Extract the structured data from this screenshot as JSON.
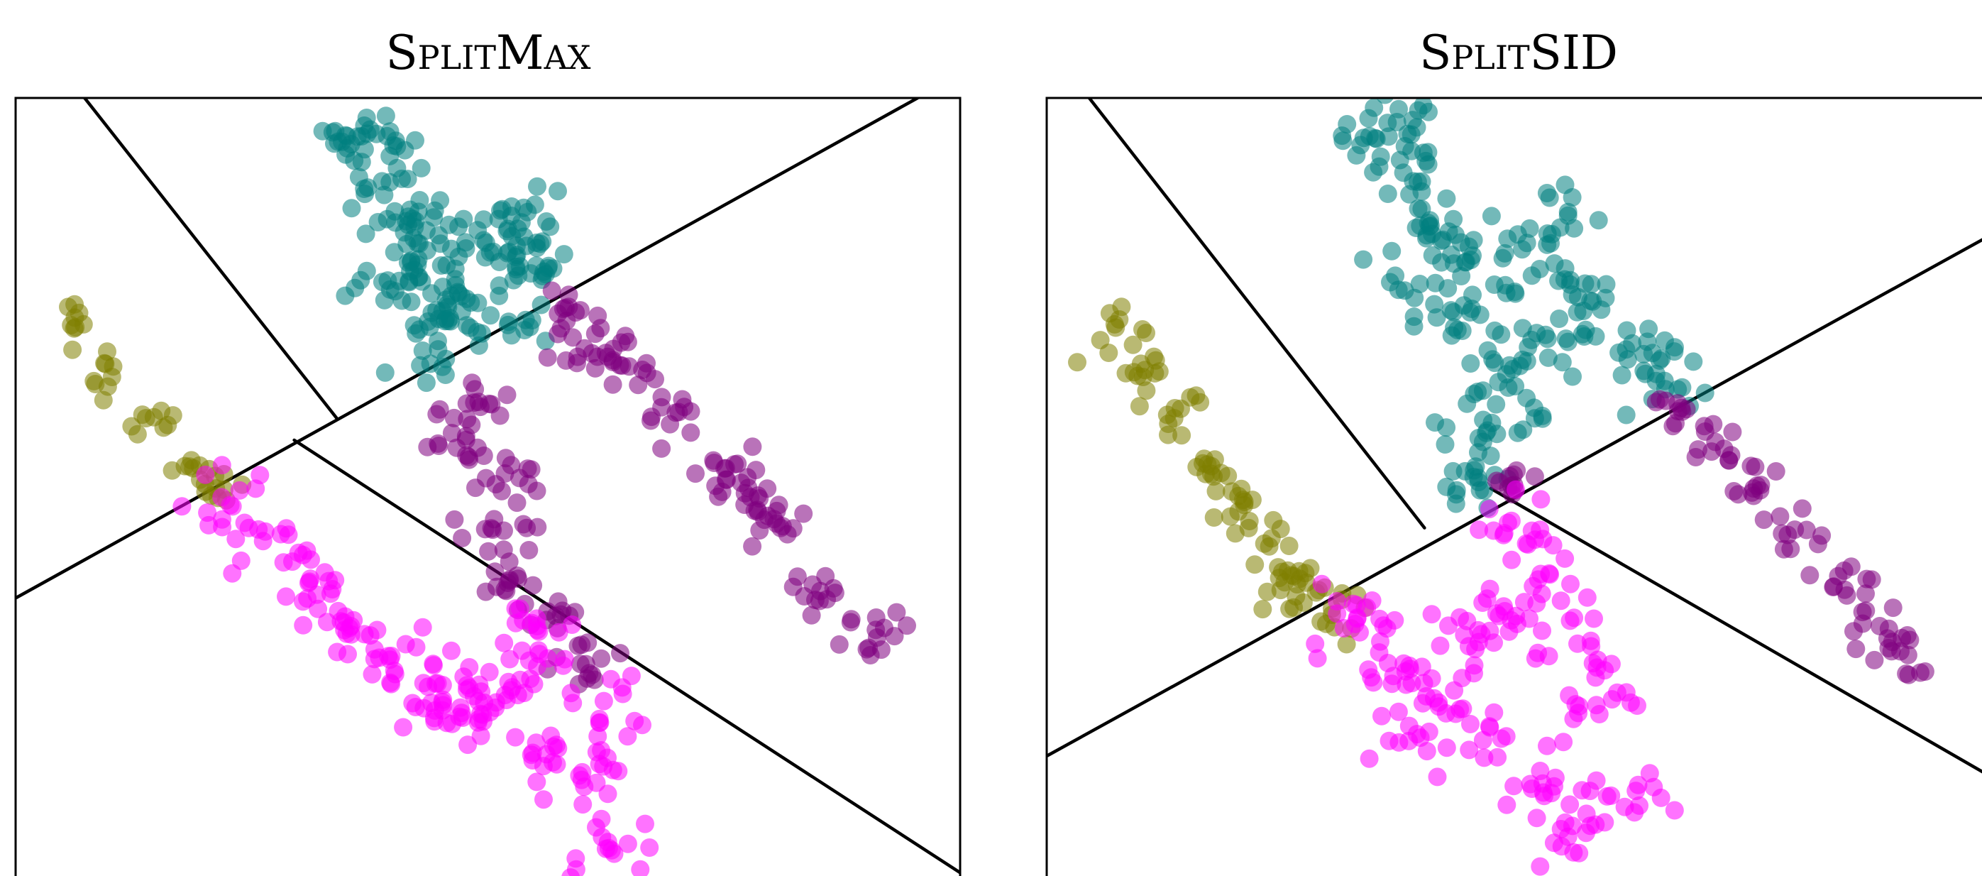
{
  "chart_data": [
    {
      "type": "scatter",
      "title": "SplitMax",
      "xlabel": "",
      "ylabel": "",
      "xlim": [
        0,
        10
      ],
      "ylim": [
        -8.9,
        0
      ],
      "grid": false,
      "legend": "none",
      "partition_lines": [
        {
          "from": [
            0.73,
            0
          ],
          "to": [
            3.4,
            -3.65
          ]
        },
        {
          "from": [
            0,
            -5.7
          ],
          "to": [
            9.55,
            0
          ]
        },
        {
          "from": [
            2.95,
            -3.9
          ],
          "to": [
            10.1,
            -8.9
          ]
        }
      ],
      "series": [
        {
          "color": "#008080",
          "centers": [
            [
              3.62,
              -0.44
            ],
            [
              3.82,
              -0.41
            ],
            [
              3.88,
              -0.95
            ],
            [
              4.02,
              -1.42
            ],
            [
              4.35,
              -1.51
            ],
            [
              4.98,
              -1.65
            ],
            [
              5.34,
              -1.92
            ],
            [
              4.22,
              -1.96
            ],
            [
              5.58,
              -2.03
            ],
            [
              4.52,
              -2.43
            ],
            [
              4.31,
              -2.88
            ],
            [
              5.22,
              -2.55
            ],
            [
              4.72,
              -2.26
            ],
            [
              3.94,
              -2.08
            ],
            [
              5.42,
              -1.3
            ]
          ],
          "scatter": [
            0.26,
            0.22
          ],
          "points_per_center": 13,
          "seed": 11
        },
        {
          "color": "#800080",
          "centers": [
            [
              5.98,
              -2.42
            ],
            [
              6.42,
              -3.05
            ],
            [
              7.02,
              -3.58
            ],
            [
              7.52,
              -4.22
            ],
            [
              8.12,
              -4.88
            ],
            [
              8.52,
              -5.62
            ],
            [
              9.12,
              -6.15
            ],
            [
              4.92,
              -3.52
            ],
            [
              5.18,
              -4.28
            ],
            [
              5.05,
              -4.92
            ],
            [
              5.32,
              -5.48
            ],
            [
              5.62,
              -5.95
            ],
            [
              5.95,
              -2.95
            ],
            [
              4.62,
              -3.82
            ],
            [
              5.98,
              -6.45
            ],
            [
              7.78,
              -4.55
            ]
          ],
          "scatter": [
            0.24,
            0.2
          ],
          "points_per_center": 12,
          "seed": 23
        },
        {
          "color": "#808000",
          "centers": [
            [
              0.72,
              -2.58
            ],
            [
              1.02,
              -3.18
            ],
            [
              1.38,
              -3.65
            ],
            [
              1.88,
              -4.22
            ],
            [
              2.12,
              -4.45
            ]
          ],
          "scatter": [
            0.16,
            0.16
          ],
          "points_per_center": 8,
          "seed": 37
        },
        {
          "color": "#ff00ff",
          "centers": [
            [
              2.18,
              -4.55
            ],
            [
              2.62,
              -5.05
            ],
            [
              3.12,
              -5.48
            ],
            [
              3.55,
              -6.02
            ],
            [
              4.42,
              -6.45
            ],
            [
              5.08,
              -6.95
            ],
            [
              5.62,
              -7.48
            ],
            [
              5.52,
              -6.02
            ],
            [
              6.18,
              -7.12
            ],
            [
              6.02,
              -7.85
            ],
            [
              5.45,
              -6.62
            ],
            [
              4.92,
              -7.02
            ],
            [
              6.28,
              -8.55
            ],
            [
              4.52,
              -6.98
            ],
            [
              3.85,
              -6.38
            ]
          ],
          "scatter": [
            0.3,
            0.26
          ],
          "points_per_center": 13,
          "seed": 51
        }
      ]
    },
    {
      "type": "scatter",
      "title": "SplitSID",
      "xlabel": "",
      "ylabel": "",
      "xlim": [
        0,
        10
      ],
      "ylim": [
        -8.9,
        0
      ],
      "grid": false,
      "legend": "none",
      "partition_lines": [
        {
          "from": [
            0.45,
            0
          ],
          "to": [
            4.0,
            -4.9
          ]
        },
        {
          "from": [
            0,
            -7.5
          ],
          "to": [
            10.1,
            -1.5
          ]
        },
        {
          "from": [
            4.7,
            -4.45
          ],
          "to": [
            10.1,
            -7.8
          ]
        }
      ],
      "series": [
        {
          "color": "#008080",
          "centers": [
            [
              3.62,
              -0.44
            ],
            [
              3.82,
              -0.41
            ],
            [
              3.88,
              -0.95
            ],
            [
              4.08,
              -1.55
            ],
            [
              4.52,
              -1.62
            ],
            [
              5.22,
              -1.95
            ],
            [
              5.78,
              -2.32
            ],
            [
              6.32,
              -2.92
            ],
            [
              6.55,
              -3.32
            ],
            [
              4.28,
              -2.42
            ],
            [
              4.72,
              -2.98
            ],
            [
              5.08,
              -3.42
            ],
            [
              4.62,
              -3.92
            ],
            [
              4.52,
              -4.32
            ],
            [
              5.52,
              -2.78
            ],
            [
              3.95,
              -2.12
            ],
            [
              5.52,
              -1.3
            ]
          ],
          "scatter": [
            0.28,
            0.24
          ],
          "points_per_center": 13,
          "seed": 67
        },
        {
          "color": "#800080",
          "centers": [
            [
              6.68,
              -3.48
            ],
            [
              7.08,
              -3.92
            ],
            [
              7.52,
              -4.42
            ],
            [
              7.92,
              -4.92
            ],
            [
              8.38,
              -5.45
            ],
            [
              8.82,
              -6.02
            ],
            [
              9.12,
              -6.35
            ],
            [
              4.92,
              -4.42
            ]
          ],
          "scatter": [
            0.2,
            0.18
          ],
          "points_per_center": 10,
          "seed": 79
        },
        {
          "color": "#808000",
          "centers": [
            [
              0.72,
              -2.58
            ],
            [
              1.02,
              -3.18
            ],
            [
              1.35,
              -3.65
            ],
            [
              1.78,
              -4.12
            ],
            [
              2.08,
              -4.58
            ],
            [
              2.38,
              -5.02
            ],
            [
              2.68,
              -5.48
            ],
            [
              3.02,
              -5.82
            ],
            [
              2.52,
              -5.52
            ]
          ],
          "scatter": [
            0.2,
            0.2
          ],
          "points_per_center": 10,
          "seed": 83
        },
        {
          "color": "#ff00ff",
          "centers": [
            [
              3.28,
              -5.78
            ],
            [
              3.52,
              -6.32
            ],
            [
              4.02,
              -6.82
            ],
            [
              4.62,
              -7.32
            ],
            [
              5.12,
              -7.82
            ],
            [
              5.52,
              -8.42
            ],
            [
              4.92,
              -4.82
            ],
            [
              5.32,
              -5.42
            ],
            [
              5.62,
              -6.22
            ],
            [
              5.82,
              -6.92
            ],
            [
              4.42,
              -6.12
            ],
            [
              6.12,
              -8.08
            ],
            [
              3.92,
              -7.25
            ],
            [
              4.85,
              -5.85
            ]
          ],
          "scatter": [
            0.3,
            0.26
          ],
          "points_per_center": 13,
          "seed": 97
        }
      ]
    }
  ]
}
